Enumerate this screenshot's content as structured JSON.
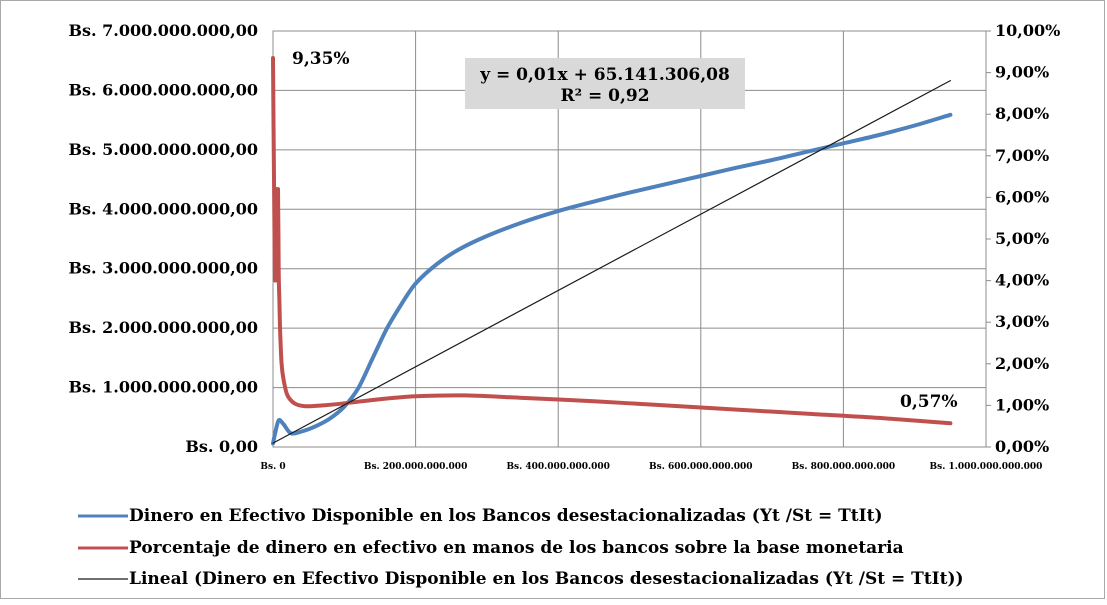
{
  "chart_data": {
    "type": "line",
    "y_left_ticks": [
      "Bs. 7.000.000.000,00",
      "Bs. 6.000.000.000,00",
      "Bs. 5.000.000.000,00",
      "Bs. 4.000.000.000,00",
      "Bs. 3.000.000.000,00",
      "Bs. 2.000.000.000,00",
      "Bs. 1.000.000.000,00",
      "Bs. 0,00"
    ],
    "y_right_ticks": [
      "10,00%",
      "9,00%",
      "8,00%",
      "7,00%",
      "6,00%",
      "5,00%",
      "4,00%",
      "3,00%",
      "2,00%",
      "1,00%",
      "0,00%"
    ],
    "x_ticks": [
      "Bs. 0",
      "Bs. 200.000.000.000",
      "Bs. 400.000.000.000",
      "Bs. 600.000.000.000",
      "Bs. 800.000.000.000",
      "Bs. 1.000.000.000.000"
    ],
    "x_range": [
      0,
      1000000000000
    ],
    "y_left_range": [
      0,
      7000000000
    ],
    "y_right_range": [
      0,
      10
    ],
    "grid": true,
    "legend_position": "bottom",
    "series": [
      {
        "name": "Dinero en Efectivo Disponible en los Bancos  desestacionalizadas (Yt /St = TtIt)",
        "axis": "left",
        "color": "#4f81bd",
        "x": [
          0,
          3000000000,
          8000000000,
          15000000000,
          25000000000,
          40000000000,
          60000000000,
          80000000000,
          100000000000,
          120000000000,
          140000000000,
          160000000000,
          180000000000,
          200000000000,
          230000000000,
          260000000000,
          300000000000,
          350000000000,
          400000000000,
          450000000000,
          500000000000,
          550000000000,
          600000000000,
          650000000000,
          700000000000,
          750000000000,
          800000000000,
          850000000000,
          900000000000,
          950000000000
        ],
        "y": [
          60000000,
          230000000,
          450000000,
          380000000,
          230000000,
          260000000,
          350000000,
          480000000,
          680000000,
          1000000000,
          1500000000,
          2000000000,
          2400000000,
          2750000000,
          3080000000,
          3320000000,
          3550000000,
          3780000000,
          3970000000,
          4130000000,
          4280000000,
          4420000000,
          4560000000,
          4700000000,
          4830000000,
          4970000000,
          5110000000,
          5250000000,
          5410000000,
          5590000000
        ]
      },
      {
        "name": "Porcentaje de dinero en efectivo en manos de los bancos sobre la base monetaria",
        "axis": "right",
        "color": "#c0504d",
        "x": [
          0,
          1500000000,
          3000000000,
          4500000000,
          6000000000,
          7000000000,
          8000000000,
          9000000000,
          10000000000,
          12000000000,
          15000000000,
          20000000000,
          30000000000,
          45000000000,
          70000000000,
          100000000000,
          150000000000,
          200000000000,
          270000000000,
          350000000000,
          450000000000,
          550000000000,
          650000000000,
          750000000000,
          850000000000,
          950000000000
        ],
        "y": [
          9.35,
          6.2,
          4.0,
          6.2,
          4.0,
          6.2,
          4.2,
          3.5,
          2.8,
          2.0,
          1.6,
          1.25,
          1.05,
          0.98,
          1.0,
          1.05,
          1.15,
          1.22,
          1.24,
          1.18,
          1.1,
          1.0,
          0.9,
          0.8,
          0.7,
          0.57
        ]
      },
      {
        "name": "Lineal (Dinero en Efectivo Disponible en los Bancos  desestacionalizadas (Yt /St = TtIt))",
        "axis": "left",
        "color": "#1a1a1a",
        "type": "trendline",
        "x": [
          0,
          950000000000
        ],
        "y": [
          65141306.08,
          6165141306.08
        ]
      }
    ],
    "annotations": {
      "max_label": "9,35%",
      "min_label": "0,57%",
      "equation": "y = 0,01x + 65.141.306,08",
      "r2": "R² = 0,92"
    }
  }
}
